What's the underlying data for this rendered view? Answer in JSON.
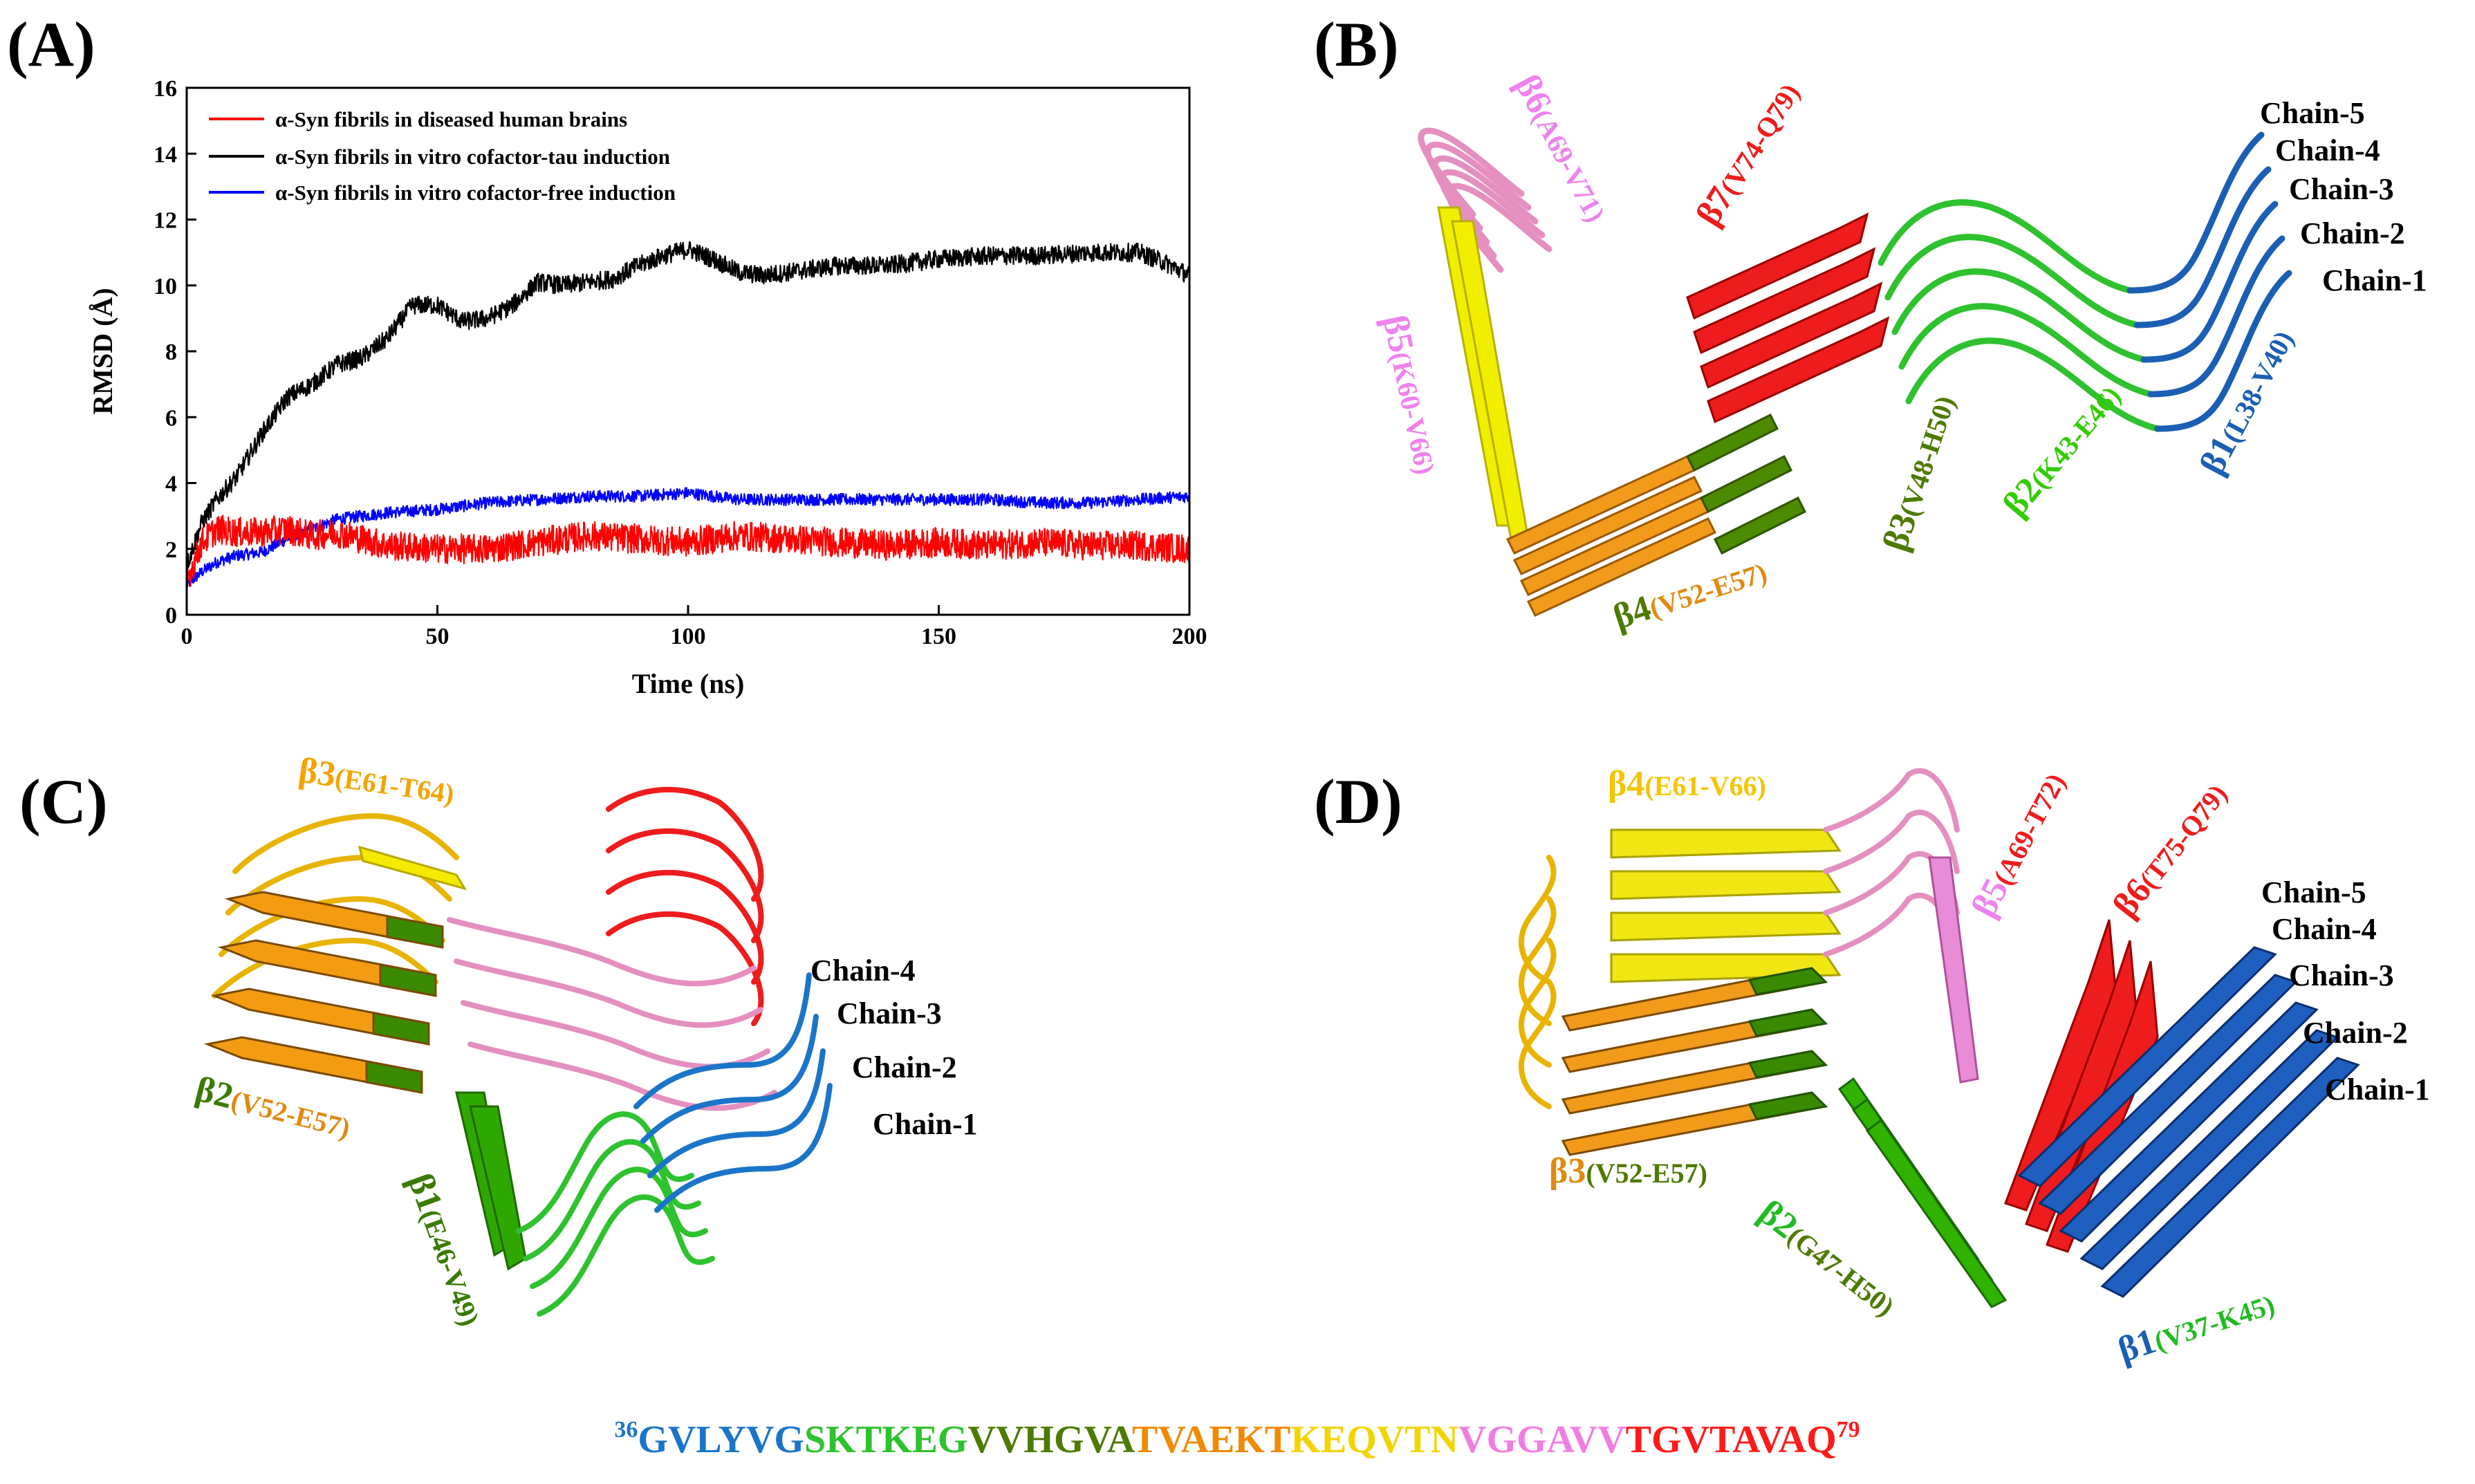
{
  "panels": {
    "a": "(A)",
    "b": "(B)",
    "c": "(C)",
    "d": "(D)"
  },
  "chart_data": {
    "type": "line",
    "title": "",
    "xlabel": "Time (ns)",
    "ylabel": "RMSD (Å)",
    "xlim": [
      0,
      200
    ],
    "ylim": [
      0,
      16
    ],
    "xticks": [
      0,
      50,
      100,
      150,
      200
    ],
    "yticks": [
      0,
      2,
      4,
      6,
      8,
      10,
      12,
      14,
      16
    ],
    "legend_position": "top-left",
    "series": [
      {
        "name": "α-Syn fibrils in diseased human brains",
        "color": "#ff0000",
        "x": [
          0,
          3,
          6,
          10,
          15,
          20,
          25,
          30,
          40,
          50,
          60,
          70,
          80,
          90,
          100,
          110,
          120,
          130,
          140,
          150,
          160,
          170,
          180,
          190,
          200
        ],
        "y": [
          1.0,
          2.2,
          2.6,
          2.5,
          2.5,
          2.6,
          2.4,
          2.5,
          2.1,
          2.0,
          2.0,
          2.2,
          2.4,
          2.3,
          2.2,
          2.4,
          2.3,
          2.2,
          2.1,
          2.2,
          2.1,
          2.2,
          2.1,
          2.1,
          2.0
        ],
        "noise": 0.45
      },
      {
        "name": "α-Syn fibrils in vitro cofactor-tau induction",
        "color": "#000000",
        "x": [
          0,
          3,
          6,
          10,
          15,
          20,
          25,
          30,
          35,
          40,
          45,
          50,
          55,
          60,
          65,
          70,
          75,
          80,
          85,
          90,
          95,
          100,
          105,
          110,
          115,
          120,
          130,
          140,
          150,
          160,
          170,
          180,
          190,
          195,
          200
        ],
        "y": [
          1.5,
          2.8,
          3.5,
          4.2,
          5.5,
          6.6,
          7.0,
          7.6,
          7.8,
          8.4,
          9.4,
          9.4,
          8.9,
          9.0,
          9.4,
          10.1,
          10.0,
          10.1,
          10.2,
          10.6,
          10.9,
          11.1,
          10.8,
          10.4,
          10.3,
          10.4,
          10.6,
          10.6,
          10.8,
          10.9,
          10.9,
          11.0,
          11.0,
          10.7,
          10.3
        ],
        "noise": 0.28
      },
      {
        "name": "α-Syn fibrils in vitro cofactor-free induction",
        "color": "#0000ff",
        "x": [
          0,
          3,
          6,
          10,
          15,
          20,
          25,
          30,
          40,
          50,
          60,
          70,
          80,
          90,
          100,
          110,
          120,
          130,
          140,
          150,
          160,
          170,
          180,
          190,
          200
        ],
        "y": [
          0.9,
          1.3,
          1.6,
          1.8,
          1.9,
          2.3,
          2.6,
          2.9,
          3.1,
          3.2,
          3.4,
          3.5,
          3.6,
          3.6,
          3.7,
          3.5,
          3.5,
          3.5,
          3.5,
          3.5,
          3.5,
          3.4,
          3.4,
          3.5,
          3.6
        ],
        "noise": 0.18
      }
    ]
  },
  "panel_b": {
    "chains": [
      "Chain-5",
      "Chain-4",
      "Chain-3",
      "Chain-2",
      "Chain-1"
    ],
    "strands": [
      {
        "name": "β1",
        "range": "(L38-V40)",
        "color": "#1a5fb4"
      },
      {
        "name": "β2",
        "range": "(K43-E46)",
        "color": "#33cc00"
      },
      {
        "name": "β3",
        "range": "(V48-H50)",
        "color": "#4d7a00"
      },
      {
        "name": "β4",
        "range": "(V52-E57)",
        "color": "#e08a10"
      },
      {
        "name": "β5",
        "range": "(K60-V66)",
        "color": "#ee82ee"
      },
      {
        "name": "β6",
        "range": "(A69-V71)",
        "color": "#ee82ee"
      },
      {
        "name": "β7",
        "range": "(V74-Q79)",
        "color": "#ee1c1c"
      }
    ]
  },
  "panel_c": {
    "chains": [
      "Chain-4",
      "Chain-3",
      "Chain-2",
      "Chain-1"
    ],
    "strands": [
      {
        "name": "β1",
        "range": "(E46-V49)",
        "color": "#3a7a00"
      },
      {
        "name": "β2",
        "range": "(V52-E57)",
        "color": "#3a7a00"
      },
      {
        "name": "β3",
        "range": "(E61-T64)",
        "color": "#f4a300"
      }
    ]
  },
  "panel_d": {
    "chains": [
      "Chain-5",
      "Chain-4",
      "Chain-3",
      "Chain-2",
      "Chain-1"
    ],
    "strands": [
      {
        "name": "β1",
        "range": "(V37-K45)",
        "color": "#1a5fb4"
      },
      {
        "name": "β2",
        "range": "(G47-H50)",
        "color": "#22bb22"
      },
      {
        "name": "β3",
        "range": "(V52-E57)",
        "color": "#e08a10"
      },
      {
        "name": "β4",
        "range": "(E61-V66)",
        "color": "#f4c400"
      },
      {
        "name": "β5",
        "range": "(A69-T72)",
        "color": "#ee82ee"
      },
      {
        "name": "β6",
        "range": "(T75-Q79)",
        "color": "#ee1c1c"
      }
    ]
  },
  "sequence": {
    "start": "36",
    "end": "79",
    "segments": [
      {
        "text": "GVLYVG",
        "color": "#1a75c9"
      },
      {
        "text": "SKTKEG",
        "color": "#2ec22e"
      },
      {
        "text": "VVHGVA",
        "color": "#4d7a00"
      },
      {
        "text": "TVAEKT",
        "color": "#f08a00"
      },
      {
        "text": "KEQVTN",
        "color": "#f4d400"
      },
      {
        "text": "VGGAVV",
        "color": "#f07ee0"
      },
      {
        "text": "TGVTAVAQ",
        "color": "#ff1a1a"
      }
    ]
  },
  "colors": {
    "axis": "#000000",
    "background": "#ffffff"
  }
}
